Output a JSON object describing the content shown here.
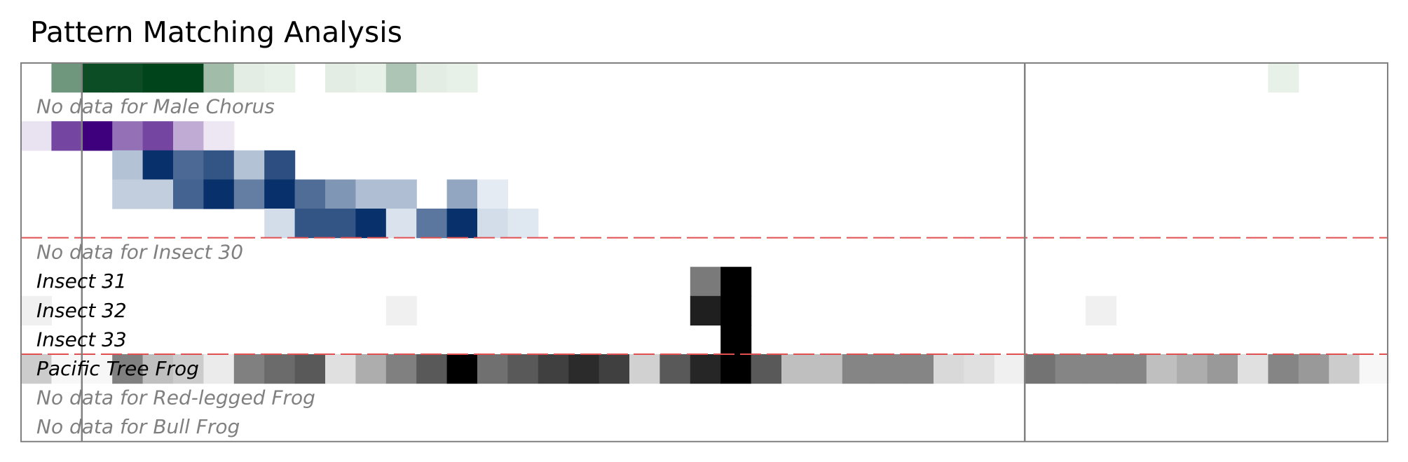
{
  "chart_data": {
    "type": "heatmap",
    "title": "Pattern Matching Analysis",
    "n_columns": 45,
    "rows": [
      {
        "label": "",
        "has_data": true,
        "colormap": "greens",
        "values": [
          0,
          0.55,
          0.95,
          0.95,
          1,
          1,
          0.35,
          0.08,
          0.06,
          0,
          0.08,
          0.06,
          0.3,
          0.08,
          0.06,
          0,
          0,
          0,
          0,
          0,
          0,
          0,
          0,
          0,
          0,
          0,
          0,
          0,
          0,
          0,
          0,
          0,
          0,
          0,
          0,
          0,
          0,
          0,
          0,
          0,
          0,
          0.06,
          0,
          0,
          0
        ]
      },
      {
        "label": "No data for Male Chorus",
        "has_data": false
      },
      {
        "label": "",
        "has_data": true,
        "colormap": "purples",
        "values": [
          0.1,
          0.72,
          1,
          0.55,
          0.72,
          0.32,
          0.08,
          0,
          0,
          0,
          0,
          0,
          0,
          0,
          0,
          0,
          0,
          0,
          0,
          0,
          0,
          0,
          0,
          0,
          0,
          0,
          0,
          0,
          0,
          0,
          0,
          0,
          0,
          0,
          0,
          0,
          0,
          0,
          0,
          0,
          0,
          0,
          0,
          0,
          0
        ]
      },
      {
        "label": "",
        "has_data": true,
        "colormap": "blues",
        "values": [
          0,
          0,
          0,
          0.28,
          1,
          0.72,
          0.82,
          0.28,
          0.85,
          0,
          0,
          0,
          0,
          0,
          0,
          0,
          0,
          0,
          0,
          0,
          0,
          0,
          0,
          0,
          0,
          0,
          0,
          0,
          0,
          0,
          0,
          0,
          0,
          0,
          0,
          0,
          0,
          0,
          0,
          0,
          0,
          0,
          0,
          0,
          0
        ]
      },
      {
        "label": "",
        "has_data": true,
        "colormap": "blues",
        "values": [
          0,
          0,
          0,
          0.22,
          0.22,
          0.75,
          1,
          0.62,
          1,
          0.7,
          0.5,
          0.3,
          0.3,
          0,
          0.42,
          0.08,
          0,
          0,
          0,
          0,
          0,
          0,
          0,
          0,
          0,
          0,
          0,
          0,
          0,
          0,
          0,
          0,
          0,
          0,
          0,
          0,
          0,
          0,
          0,
          0,
          0,
          0,
          0,
          0,
          0
        ]
      },
      {
        "label": "",
        "has_data": true,
        "colormap": "blues",
        "values": [
          0,
          0,
          0,
          0,
          0,
          0,
          0,
          0,
          0.15,
          0.82,
          0.82,
          1,
          0.12,
          0.65,
          1,
          0.15,
          0.1,
          0,
          0,
          0,
          0,
          0,
          0,
          0,
          0,
          0,
          0,
          0,
          0,
          0,
          0,
          0,
          0,
          0,
          0,
          0,
          0,
          0,
          0,
          0,
          0,
          0,
          0,
          0,
          0
        ]
      },
      {
        "label": "No data for Insect 30",
        "has_data": false
      },
      {
        "label": "Insect 31",
        "has_data": true,
        "colormap": "greys",
        "values": [
          0,
          0,
          0,
          0,
          0,
          0,
          0,
          0,
          0,
          0,
          0,
          0,
          0,
          0,
          0,
          0,
          0,
          0,
          0,
          0,
          0,
          0,
          0.52,
          1,
          0,
          0,
          0,
          0,
          0,
          0,
          0,
          0,
          0,
          0,
          0,
          0,
          0,
          0,
          0,
          0,
          0,
          0,
          0,
          0,
          0
        ]
      },
      {
        "label": "Insect 32",
        "has_data": true,
        "colormap": "greys",
        "values": [
          0.06,
          0,
          0,
          0,
          0,
          0,
          0,
          0,
          0,
          0,
          0,
          0,
          0.06,
          0,
          0,
          0,
          0,
          0,
          0,
          0,
          0,
          0,
          0.88,
          1,
          0,
          0,
          0,
          0,
          0,
          0,
          0,
          0,
          0,
          0,
          0,
          0.06,
          0,
          0,
          0,
          0,
          0,
          0,
          0,
          0,
          0
        ]
      },
      {
        "label": "Insect 33",
        "has_data": true,
        "colormap": "greys",
        "values": [
          0,
          0,
          0,
          0,
          0,
          0,
          0,
          0,
          0,
          0,
          0,
          0,
          0,
          0,
          0,
          0,
          0,
          0,
          0,
          0,
          0,
          0,
          0,
          1,
          0,
          0,
          0,
          0,
          0,
          0,
          0,
          0,
          0,
          0,
          0,
          0,
          0,
          0,
          0,
          0,
          0,
          0,
          0,
          0,
          0
        ]
      },
      {
        "label": "Pacific Tree Frog",
        "has_data": true,
        "colormap": "greys",
        "values": [
          0.2,
          0.03,
          0.03,
          0.5,
          0.25,
          0.2,
          0.08,
          0.5,
          0.58,
          0.65,
          0.12,
          0.32,
          0.5,
          0.65,
          1,
          0.56,
          0.65,
          0.75,
          0.83,
          0.75,
          0.18,
          0.65,
          0.85,
          1,
          0.65,
          0.25,
          0.25,
          0.48,
          0.48,
          0.48,
          0.15,
          0.12,
          0.06,
          0.55,
          0.48,
          0.48,
          0.48,
          0.25,
          0.32,
          0.4,
          0.12,
          0.48,
          0.4,
          0.2,
          0.03
        ]
      },
      {
        "label": "No data for Red-legged Frog",
        "has_data": false
      },
      {
        "label": "No data for Bull Frog",
        "has_data": false
      }
    ],
    "group_separators_after_row": [
      5,
      9
    ],
    "separator_color": "#e05050",
    "vertical_markers_at_column": [
      2,
      33
    ],
    "label_color_with_data": "#000000",
    "label_color_no_data": "#808080"
  }
}
